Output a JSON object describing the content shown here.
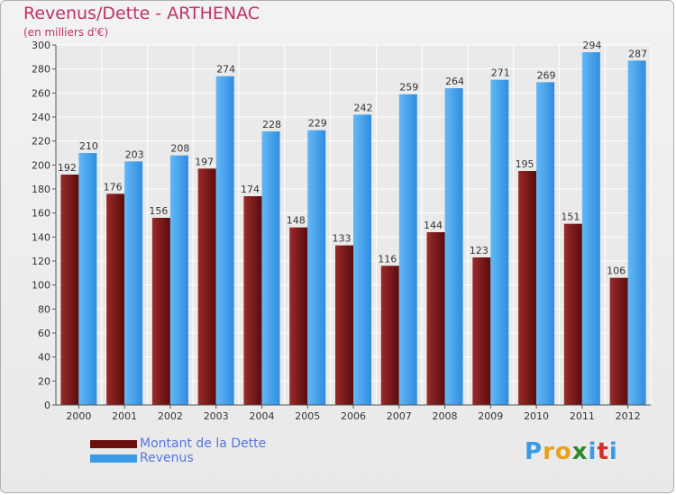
{
  "title": "Revenus/Dette - ARTHENAC",
  "subtitle": "(en milliers d'€)",
  "colors": {
    "title": "#c0306a",
    "debt": "#7a1f1f",
    "revenue": "#3a9be6",
    "legend_text": "#5577dd"
  },
  "legend": [
    {
      "label": "Montant de la Dette",
      "color": "#6b0f0f"
    },
    {
      "label": "Revenus",
      "color": "#3a9be6"
    }
  ],
  "logo": {
    "letters": [
      "P",
      "r",
      "o",
      "x",
      "i",
      "t",
      "i"
    ],
    "colors": [
      "#3a9be6",
      "#e8a020",
      "#e8a020",
      "#2c8a2c",
      "#3a9be6",
      "#d03030",
      "#3a9be6"
    ]
  },
  "chart_data": {
    "type": "bar",
    "categories": [
      "2000",
      "2001",
      "2002",
      "2003",
      "2004",
      "2005",
      "2006",
      "2007",
      "2008",
      "2009",
      "2010",
      "2011",
      "2012"
    ],
    "series": [
      {
        "name": "Montant de la Dette",
        "values": [
          192,
          176,
          156,
          197,
          174,
          148,
          133,
          116,
          144,
          123,
          195,
          151,
          106
        ]
      },
      {
        "name": "Revenus",
        "values": [
          210,
          203,
          208,
          274,
          228,
          229,
          242,
          259,
          264,
          271,
          269,
          294,
          287
        ]
      }
    ],
    "ylim": [
      0,
      300
    ],
    "yticks": [
      0,
      20,
      40,
      60,
      80,
      100,
      120,
      140,
      160,
      180,
      200,
      220,
      240,
      260,
      280,
      300
    ],
    "grid": true,
    "legend_position": "bottom-left"
  }
}
